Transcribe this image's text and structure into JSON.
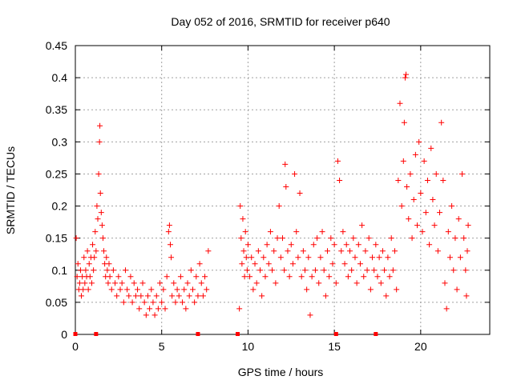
{
  "chart_data": {
    "type": "scatter",
    "title": "Day 052 of 2016, SRMTID for receiver p640",
    "xlabel": "GPS time / hours",
    "ylabel": "SRMTID / TECUs",
    "xlim": [
      0,
      24
    ],
    "ylim": [
      0,
      0.45
    ],
    "grid": true,
    "x_ticks": [
      0,
      5,
      10,
      15,
      20
    ],
    "y_ticks": [
      0,
      0.05,
      0.1,
      0.15,
      0.2,
      0.25,
      0.3,
      0.35,
      0.4,
      0.45
    ],
    "x_tick_labels": [
      "0",
      "5",
      "10",
      "15",
      "20"
    ],
    "y_tick_labels": [
      "0",
      "0.05",
      "0.1",
      "0.15",
      "0.2",
      "0.25",
      "0.3",
      "0.35",
      "0.4",
      "0.45"
    ],
    "marker": "+",
    "color": "#ff0000",
    "series": [
      {
        "name": "SRMTID",
        "points": [
          [
            0.05,
            0.15
          ],
          [
            0.1,
            0.09
          ],
          [
            0.15,
            0.11
          ],
          [
            0.2,
            0.07
          ],
          [
            0.25,
            0.08
          ],
          [
            0.3,
            0.1
          ],
          [
            0.35,
            0.06
          ],
          [
            0.4,
            0.09
          ],
          [
            0.45,
            0.07
          ],
          [
            0.5,
            0.12
          ],
          [
            0.55,
            0.08
          ],
          [
            0.6,
            0.1
          ],
          [
            0.65,
            0.09
          ],
          [
            0.7,
            0.13
          ],
          [
            0.75,
            0.07
          ],
          [
            0.8,
            0.11
          ],
          [
            0.85,
            0.09
          ],
          [
            0.9,
            0.12
          ],
          [
            0.95,
            0.08
          ],
          [
            1.0,
            0.14
          ],
          [
            1.05,
            0.1
          ],
          [
            1.1,
            0.12
          ],
          [
            1.15,
            0.16
          ],
          [
            1.2,
            0.13
          ],
          [
            1.25,
            0.2
          ],
          [
            1.3,
            0.18
          ],
          [
            1.35,
            0.25
          ],
          [
            1.4,
            0.3
          ],
          [
            1.42,
            0.325
          ],
          [
            1.45,
            0.22
          ],
          [
            1.5,
            0.19
          ],
          [
            1.55,
            0.17
          ],
          [
            1.6,
            0.15
          ],
          [
            1.65,
            0.13
          ],
          [
            1.7,
            0.11
          ],
          [
            1.75,
            0.09
          ],
          [
            1.8,
            0.12
          ],
          [
            1.85,
            0.1
          ],
          [
            1.9,
            0.08
          ],
          [
            1.95,
            0.11
          ],
          [
            2.0,
            0.09
          ],
          [
            2.1,
            0.07
          ],
          [
            2.2,
            0.1
          ],
          [
            2.3,
            0.08
          ],
          [
            2.4,
            0.06
          ],
          [
            2.5,
            0.09
          ],
          [
            2.6,
            0.07
          ],
          [
            2.7,
            0.08
          ],
          [
            2.8,
            0.05
          ],
          [
            2.9,
            0.1
          ],
          [
            3.0,
            0.07
          ],
          [
            3.1,
            0.06
          ],
          [
            3.2,
            0.09
          ],
          [
            3.3,
            0.05
          ],
          [
            3.4,
            0.08
          ],
          [
            3.5,
            0.06
          ],
          [
            3.6,
            0.07
          ],
          [
            3.7,
            0.04
          ],
          [
            3.8,
            0.06
          ],
          [
            3.9,
            0.08
          ],
          [
            4.0,
            0.05
          ],
          [
            4.1,
            0.03
          ],
          [
            4.2,
            0.06
          ],
          [
            4.3,
            0.04
          ],
          [
            4.4,
            0.07
          ],
          [
            4.5,
            0.05
          ],
          [
            4.6,
            0.03
          ],
          [
            4.7,
            0.06
          ],
          [
            4.8,
            0.04
          ],
          [
            4.9,
            0.08
          ],
          [
            5.0,
            0.05
          ],
          [
            5.1,
            0.07
          ],
          [
            5.2,
            0.04
          ],
          [
            5.3,
            0.09
          ],
          [
            5.4,
            0.16
          ],
          [
            5.45,
            0.17
          ],
          [
            5.5,
            0.14
          ],
          [
            5.55,
            0.12
          ],
          [
            5.6,
            0.06
          ],
          [
            5.7,
            0.08
          ],
          [
            5.8,
            0.05
          ],
          [
            5.9,
            0.07
          ],
          [
            6.0,
            0.06
          ],
          [
            6.1,
            0.09
          ],
          [
            6.2,
            0.05
          ],
          [
            6.3,
            0.07
          ],
          [
            6.4,
            0.04
          ],
          [
            6.5,
            0.08
          ],
          [
            6.6,
            0.06
          ],
          [
            6.7,
            0.1
          ],
          [
            6.8,
            0.07
          ],
          [
            6.9,
            0.05
          ],
          [
            7.0,
            0.09
          ],
          [
            7.1,
            0.06
          ],
          [
            7.2,
            0.11
          ],
          [
            7.3,
            0.08
          ],
          [
            7.4,
            0.06
          ],
          [
            7.5,
            0.09
          ],
          [
            7.6,
            0.07
          ],
          [
            7.7,
            0.13
          ],
          [
            9.5,
            0.04
          ],
          [
            9.55,
            0.2
          ],
          [
            9.6,
            0.15
          ],
          [
            9.65,
            0.11
          ],
          [
            9.7,
            0.18
          ],
          [
            9.75,
            0.13
          ],
          [
            9.8,
            0.09
          ],
          [
            9.85,
            0.16
          ],
          [
            9.9,
            0.12
          ],
          [
            9.95,
            0.1
          ],
          [
            10.0,
            0.14
          ],
          [
            10.1,
            0.09
          ],
          [
            10.2,
            0.12
          ],
          [
            10.3,
            0.07
          ],
          [
            10.4,
            0.11
          ],
          [
            10.5,
            0.08
          ],
          [
            10.6,
            0.13
          ],
          [
            10.7,
            0.1
          ],
          [
            10.8,
            0.06
          ],
          [
            10.9,
            0.12
          ],
          [
            11.0,
            0.09
          ],
          [
            11.1,
            0.14
          ],
          [
            11.2,
            0.11
          ],
          [
            11.3,
            0.16
          ],
          [
            11.4,
            0.1
          ],
          [
            11.5,
            0.13
          ],
          [
            11.6,
            0.08
          ],
          [
            11.7,
            0.15
          ],
          [
            11.8,
            0.2
          ],
          [
            11.9,
            0.12
          ],
          [
            12.0,
            0.15
          ],
          [
            12.1,
            0.1
          ],
          [
            12.15,
            0.265
          ],
          [
            12.2,
            0.23
          ],
          [
            12.3,
            0.13
          ],
          [
            12.4,
            0.09
          ],
          [
            12.5,
            0.14
          ],
          [
            12.6,
            0.11
          ],
          [
            12.7,
            0.25
          ],
          [
            12.8,
            0.16
          ],
          [
            12.9,
            0.12
          ],
          [
            13.0,
            0.22
          ],
          [
            13.1,
            0.09
          ],
          [
            13.2,
            0.13
          ],
          [
            13.3,
            0.1
          ],
          [
            13.4,
            0.07
          ],
          [
            13.5,
            0.12
          ],
          [
            13.6,
            0.03
          ],
          [
            13.7,
            0.09
          ],
          [
            13.8,
            0.14
          ],
          [
            13.9,
            0.1
          ],
          [
            14.0,
            0.15
          ],
          [
            14.1,
            0.08
          ],
          [
            14.2,
            0.12
          ],
          [
            14.3,
            0.16
          ],
          [
            14.4,
            0.1
          ],
          [
            14.5,
            0.06
          ],
          [
            14.6,
            0.13
          ],
          [
            14.7,
            0.09
          ],
          [
            14.8,
            0.15
          ],
          [
            14.9,
            0.11
          ],
          [
            15.0,
            0.14
          ],
          [
            15.1,
            0.08
          ],
          [
            15.2,
            0.27
          ],
          [
            15.3,
            0.24
          ],
          [
            15.4,
            0.13
          ],
          [
            15.5,
            0.16
          ],
          [
            15.6,
            0.11
          ],
          [
            15.7,
            0.14
          ],
          [
            15.8,
            0.09
          ],
          [
            15.9,
            0.13
          ],
          [
            16.0,
            0.1
          ],
          [
            16.1,
            0.15
          ],
          [
            16.2,
            0.12
          ],
          [
            16.3,
            0.08
          ],
          [
            16.4,
            0.14
          ],
          [
            16.5,
            0.11
          ],
          [
            16.6,
            0.17
          ],
          [
            16.7,
            0.09
          ],
          [
            16.8,
            0.13
          ],
          [
            16.9,
            0.1
          ],
          [
            17.0,
            0.15
          ],
          [
            17.1,
            0.07
          ],
          [
            17.2,
            0.12
          ],
          [
            17.3,
            0.1
          ],
          [
            17.4,
            0.14
          ],
          [
            17.5,
            0.09
          ],
          [
            17.6,
            0.12
          ],
          [
            17.7,
            0.08
          ],
          [
            17.8,
            0.13
          ],
          [
            17.9,
            0.1
          ],
          [
            18.0,
            0.06
          ],
          [
            18.1,
            0.12
          ],
          [
            18.2,
            0.09
          ],
          [
            18.3,
            0.15
          ],
          [
            18.4,
            0.1
          ],
          [
            18.5,
            0.13
          ],
          [
            18.6,
            0.07
          ],
          [
            18.7,
            0.24
          ],
          [
            18.8,
            0.36
          ],
          [
            18.9,
            0.2
          ],
          [
            19.0,
            0.27
          ],
          [
            19.05,
            0.33
          ],
          [
            19.1,
            0.4
          ],
          [
            19.15,
            0.405
          ],
          [
            19.2,
            0.23
          ],
          [
            19.3,
            0.18
          ],
          [
            19.4,
            0.25
          ],
          [
            19.5,
            0.15
          ],
          [
            19.6,
            0.21
          ],
          [
            19.7,
            0.28
          ],
          [
            19.8,
            0.17
          ],
          [
            19.9,
            0.3
          ],
          [
            20.0,
            0.22
          ],
          [
            20.1,
            0.16
          ],
          [
            20.2,
            0.27
          ],
          [
            20.3,
            0.19
          ],
          [
            20.4,
            0.24
          ],
          [
            20.5,
            0.14
          ],
          [
            20.6,
            0.29
          ],
          [
            20.7,
            0.21
          ],
          [
            20.8,
            0.17
          ],
          [
            20.9,
            0.25
          ],
          [
            21.0,
            0.13
          ],
          [
            21.1,
            0.19
          ],
          [
            21.2,
            0.33
          ],
          [
            21.3,
            0.24
          ],
          [
            21.4,
            0.08
          ],
          [
            21.5,
            0.04
          ],
          [
            21.6,
            0.16
          ],
          [
            21.7,
            0.12
          ],
          [
            21.8,
            0.2
          ],
          [
            21.9,
            0.1
          ],
          [
            22.0,
            0.15
          ],
          [
            22.1,
            0.07
          ],
          [
            22.2,
            0.18
          ],
          [
            22.3,
            0.12
          ],
          [
            22.4,
            0.25
          ],
          [
            22.5,
            0.15
          ],
          [
            22.6,
            0.1
          ],
          [
            22.65,
            0.06
          ],
          [
            22.7,
            0.13
          ],
          [
            22.75,
            0.17
          ]
        ]
      }
    ],
    "baseline_markers_x": [
      0.0,
      1.2,
      7.1,
      9.4,
      15.1,
      17.4
    ]
  }
}
